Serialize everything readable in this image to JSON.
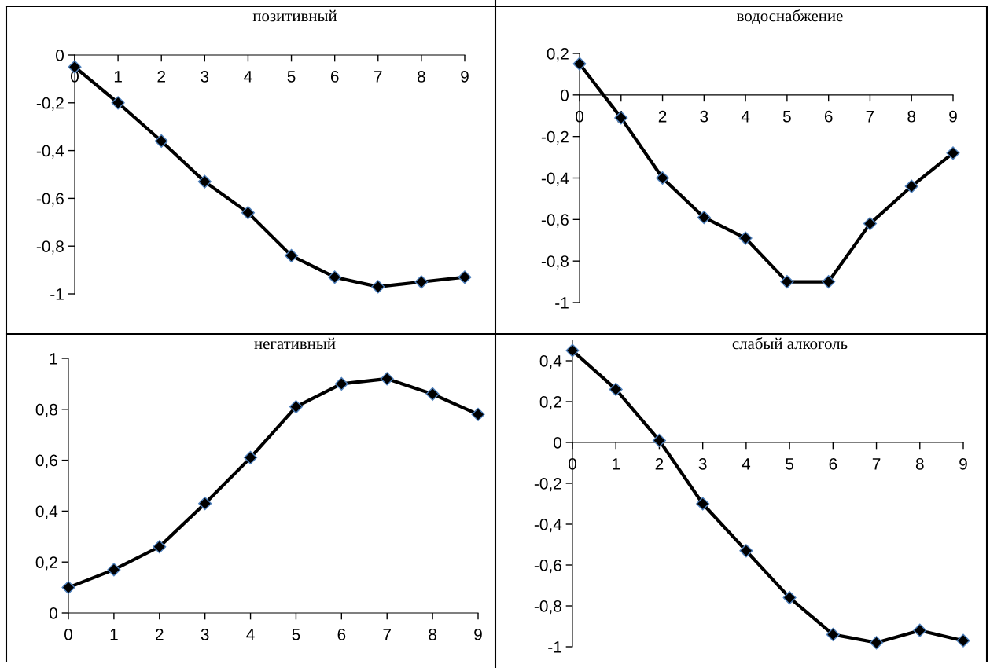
{
  "chart_data": [
    {
      "type": "line",
      "title": "позитивный",
      "x": [
        0,
        1,
        2,
        3,
        4,
        5,
        6,
        7,
        8,
        9
      ],
      "xlim": [
        0,
        9
      ],
      "xticks": [
        0,
        1,
        2,
        3,
        4,
        5,
        6,
        7,
        8,
        9
      ],
      "ylim": [
        -1,
        0
      ],
      "yticks": [
        {
          "value": -1,
          "label": "-1"
        },
        {
          "value": -0.8,
          "label": "-0,8"
        },
        {
          "value": -0.6,
          "label": "-0,6"
        },
        {
          "value": -0.4,
          "label": "-0,4"
        },
        {
          "value": -0.2,
          "label": "-0,2"
        },
        0
      ],
      "marker": "diamond",
      "series": [
        {
          "color": "#000000",
          "values": [
            -0.05,
            -0.2,
            -0.36,
            -0.53,
            -0.66,
            -0.84,
            -0.93,
            -0.97,
            -0.95,
            -0.93
          ]
        }
      ]
    },
    {
      "type": "line",
      "title": "водоснабжение",
      "x": [
        0,
        1,
        2,
        3,
        4,
        5,
        6,
        7,
        8,
        9
      ],
      "xlim": [
        0,
        9
      ],
      "xticks": [
        0,
        1,
        2,
        3,
        4,
        5,
        6,
        7,
        8,
        9
      ],
      "ylim": [
        -1,
        0.2
      ],
      "yticks": [
        {
          "value": -1,
          "label": "-1"
        },
        {
          "value": -0.8,
          "label": "-0,8"
        },
        {
          "value": -0.6,
          "label": "-0,6"
        },
        {
          "value": -0.4,
          "label": "-0,4"
        },
        {
          "value": -0.2,
          "label": "-0,2"
        },
        0,
        {
          "value": 0.2,
          "label": "0,2"
        }
      ],
      "marker": "diamond",
      "series": [
        {
          "color": "#000000",
          "values": [
            0.15,
            -0.11,
            -0.4,
            -0.59,
            -0.69,
            -0.9,
            -0.9,
            -0.62,
            -0.44,
            -0.28
          ]
        }
      ]
    },
    {
      "type": "line",
      "title": "негативный",
      "x": [
        0,
        1,
        2,
        3,
        4,
        5,
        6,
        7,
        8,
        9
      ],
      "xlim": [
        0,
        9
      ],
      "xticks": [
        0,
        1,
        2,
        3,
        4,
        5,
        6,
        7,
        8,
        9
      ],
      "ylim": [
        0,
        1
      ],
      "yticks": [
        0,
        {
          "value": 0.2,
          "label": "0,2"
        },
        {
          "value": 0.4,
          "label": "0,4"
        },
        {
          "value": 0.6,
          "label": "0,6"
        },
        {
          "value": 0.8,
          "label": "0,8"
        },
        1
      ],
      "marker": "diamond",
      "series": [
        {
          "color": "#000000",
          "values": [
            0.1,
            0.17,
            0.26,
            0.43,
            0.61,
            0.81,
            0.9,
            0.92,
            0.86,
            0.78
          ]
        }
      ]
    },
    {
      "type": "line",
      "title": "слабый алкоголь",
      "x": [
        0,
        1,
        2,
        3,
        4,
        5,
        6,
        7,
        8,
        9
      ],
      "xlim": [
        0,
        9
      ],
      "xticks": [
        0,
        1,
        2,
        3,
        4,
        5,
        6,
        7,
        8,
        9
      ],
      "ylim": [
        -1,
        0.5
      ],
      "yticks": [
        {
          "value": -1,
          "label": "-1"
        },
        {
          "value": -0.8,
          "label": "-0,8"
        },
        {
          "value": -0.6,
          "label": "-0,6"
        },
        {
          "value": -0.4,
          "label": "-0,4"
        },
        {
          "value": -0.2,
          "label": "-0,2"
        },
        0,
        {
          "value": 0.2,
          "label": "0,2"
        },
        {
          "value": 0.4,
          "label": "0,4"
        }
      ],
      "marker": "diamond",
      "series": [
        {
          "color": "#000000",
          "values": [
            0.45,
            0.26,
            0.01,
            -0.3,
            -0.53,
            -0.76,
            -0.94,
            -0.98,
            -0.92,
            -0.97
          ]
        }
      ]
    }
  ]
}
